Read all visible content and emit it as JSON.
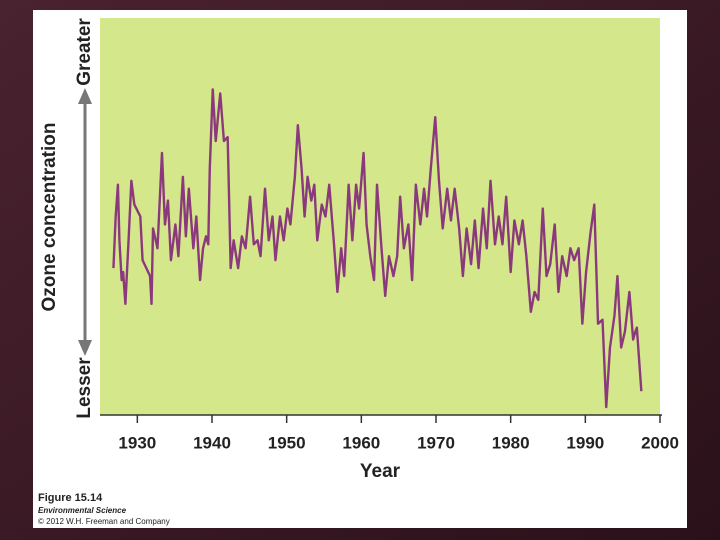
{
  "chart_data": {
    "type": "line",
    "y_label": "Ozone concentration",
    "y_high_label": "Greater",
    "y_low_label": "Lesser",
    "x_label": "Year",
    "caption_title": "Figure 15.14",
    "caption_book": "Environmental Science",
    "caption_credit": "© 2012 W.H. Freeman and Company",
    "xlim": [
      1925,
      2000
    ],
    "xticks": [
      1930,
      1940,
      1950,
      1960,
      1970,
      1980,
      1990,
      2000
    ],
    "ylim": [
      0,
      100
    ],
    "series": [
      {
        "color": "#8a3a7c",
        "x": [
          1926.8,
          1927.1,
          1927.4,
          1927.6,
          1927.9,
          1928.1,
          1928.4,
          1928.8,
          1929.2,
          1929.6,
          1930.4,
          1930.7,
          1931.7,
          1931.9,
          1932.1,
          1932.7,
          1933.3,
          1933.7,
          1934.1,
          1934.5,
          1935.1,
          1935.5,
          1936.1,
          1936.5,
          1936.9,
          1937.5,
          1937.9,
          1938.4,
          1938.8,
          1939.2,
          1939.5,
          1939.7,
          1940.1,
          1940.5,
          1941.1,
          1941.6,
          1942.1,
          1942.5,
          1942.9,
          1943.5,
          1944.0,
          1944.5,
          1945.1,
          1945.6,
          1946.1,
          1946.5,
          1947.1,
          1947.6,
          1948.1,
          1948.5,
          1949.1,
          1949.6,
          1950.1,
          1950.5,
          1951.1,
          1951.5,
          1952.0,
          1952.4,
          1952.8,
          1953.3,
          1953.7,
          1954.1,
          1954.7,
          1955.2,
          1955.7,
          1956.3,
          1956.8,
          1957.3,
          1957.7,
          1958.3,
          1958.8,
          1959.3,
          1959.7,
          1960.3,
          1960.7,
          1961.2,
          1961.7,
          1962.1,
          1962.7,
          1963.2,
          1963.7,
          1964.3,
          1964.8,
          1965.2,
          1965.7,
          1966.3,
          1966.8,
          1967.3,
          1967.9,
          1968.4,
          1968.8,
          1969.3,
          1969.9,
          1970.4,
          1970.9,
          1971.5,
          1972.0,
          1972.5,
          1973.1,
          1973.6,
          1974.1,
          1974.7,
          1975.2,
          1975.7,
          1976.3,
          1976.8,
          1977.3,
          1977.9,
          1978.4,
          1978.9,
          1979.4,
          1980.0,
          1980.5,
          1981.1,
          1981.6,
          1982.1,
          1982.7,
          1983.2,
          1983.7,
          1984.3,
          1984.8,
          1985.3,
          1985.9,
          1986.4,
          1986.9,
          1987.5,
          1988.0,
          1988.5,
          1989.1,
          1989.6,
          1990.1,
          1990.7,
          1991.2,
          1991.7,
          1992.3,
          1992.8,
          1993.3,
          1993.9,
          1994.3,
          1994.8,
          1995.3,
          1995.9,
          1996.4,
          1996.7,
          1996.9,
          1997.5
        ],
        "values": [
          37,
          50,
          58,
          44,
          34,
          36,
          28,
          43,
          59,
          53,
          50,
          39,
          35,
          28,
          47,
          42,
          66,
          48,
          54,
          39,
          48,
          40,
          60,
          45,
          57,
          42,
          50,
          34,
          42,
          45,
          43,
          62,
          82,
          69,
          81,
          69,
          70,
          37,
          44,
          37,
          45,
          42,
          55,
          43,
          44,
          40,
          57,
          44,
          50,
          39,
          50,
          44,
          52,
          48,
          60,
          73,
          62,
          50,
          60,
          54,
          58,
          44,
          53,
          50,
          58,
          44,
          31,
          42,
          35,
          58,
          44,
          58,
          52,
          66,
          48,
          40,
          34,
          58,
          42,
          30,
          40,
          35,
          40,
          55,
          42,
          48,
          34,
          58,
          48,
          57,
          50,
          62,
          75,
          59,
          47,
          57,
          49,
          57,
          47,
          35,
          47,
          38,
          49,
          37,
          52,
          42,
          59,
          43,
          50,
          43,
          55,
          36,
          49,
          43,
          49,
          40,
          26,
          31,
          29,
          52,
          35,
          38,
          48,
          31,
          40,
          35,
          42,
          39,
          42,
          23,
          36,
          46,
          53,
          23,
          24,
          2,
          17,
          25,
          35,
          17,
          21,
          31,
          19,
          21,
          22,
          6
        ]
      }
    ]
  }
}
